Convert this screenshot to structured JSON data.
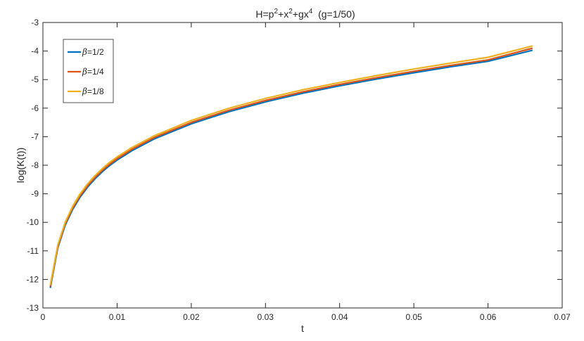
{
  "chart_data": {
    "type": "line",
    "title_parts": [
      "H=p",
      "2",
      "+x",
      "2",
      "+gx",
      "4",
      "  (g=1/50)"
    ],
    "xlabel": "t",
    "ylabel": "log(K(t))",
    "xlim": [
      0,
      0.07
    ],
    "ylim": [
      -13,
      -3
    ],
    "xticks": [
      0,
      0.01,
      0.02,
      0.03,
      0.04,
      0.05,
      0.06,
      0.07
    ],
    "xtick_labels": [
      "0",
      "0.01",
      "0.02",
      "0.03",
      "0.04",
      "0.05",
      "0.06",
      "0.07"
    ],
    "yticks": [
      -13,
      -12,
      -11,
      -10,
      -9,
      -8,
      -7,
      -6,
      -5,
      -4,
      -3
    ],
    "ytick_labels": [
      "-13",
      "-12",
      "-11",
      "-10",
      "-9",
      "-8",
      "-7",
      "-6",
      "-5",
      "-4",
      "-3"
    ],
    "grid": false,
    "legend_position": "top-left",
    "series": [
      {
        "name_symbol": "β",
        "name_value": "=1/2",
        "color": "#0072BD",
        "x": [
          0.001,
          0.002,
          0.003,
          0.004,
          0.005,
          0.006,
          0.007,
          0.008,
          0.009,
          0.01,
          0.012,
          0.015,
          0.02,
          0.025,
          0.03,
          0.035,
          0.04,
          0.045,
          0.05,
          0.055,
          0.06,
          0.066
        ],
        "y": [
          -12.3,
          -10.9,
          -10.1,
          -9.55,
          -9.12,
          -8.77,
          -8.48,
          -8.23,
          -8.01,
          -7.82,
          -7.49,
          -7.08,
          -6.55,
          -6.13,
          -5.78,
          -5.48,
          -5.22,
          -4.98,
          -4.76,
          -4.55,
          -4.36,
          -3.97
        ]
      },
      {
        "name_symbol": "β",
        "name_value": "=1/4",
        "color": "#D95319",
        "x": [
          0.001,
          0.002,
          0.003,
          0.004,
          0.005,
          0.006,
          0.007,
          0.008,
          0.009,
          0.01,
          0.012,
          0.015,
          0.02,
          0.025,
          0.03,
          0.035,
          0.04,
          0.045,
          0.05,
          0.055,
          0.06,
          0.066
        ],
        "y": [
          -12.25,
          -10.85,
          -10.05,
          -9.5,
          -9.07,
          -8.72,
          -8.43,
          -8.18,
          -7.96,
          -7.77,
          -7.44,
          -7.03,
          -6.5,
          -6.08,
          -5.73,
          -5.43,
          -5.17,
          -4.93,
          -4.71,
          -4.5,
          -4.31,
          -3.9
        ]
      },
      {
        "name_symbol": "β",
        "name_value": "=1/8",
        "color": "#EDB120",
        "x": [
          0.001,
          0.002,
          0.003,
          0.004,
          0.005,
          0.006,
          0.007,
          0.008,
          0.009,
          0.01,
          0.012,
          0.015,
          0.02,
          0.025,
          0.03,
          0.035,
          0.04,
          0.045,
          0.05,
          0.055,
          0.06,
          0.066
        ],
        "y": [
          -12.2,
          -10.8,
          -10.0,
          -9.44,
          -9.01,
          -8.66,
          -8.37,
          -8.12,
          -7.9,
          -7.71,
          -7.38,
          -6.97,
          -6.43,
          -6.01,
          -5.66,
          -5.36,
          -5.1,
          -4.86,
          -4.63,
          -4.42,
          -4.22,
          -3.82
        ]
      }
    ]
  }
}
